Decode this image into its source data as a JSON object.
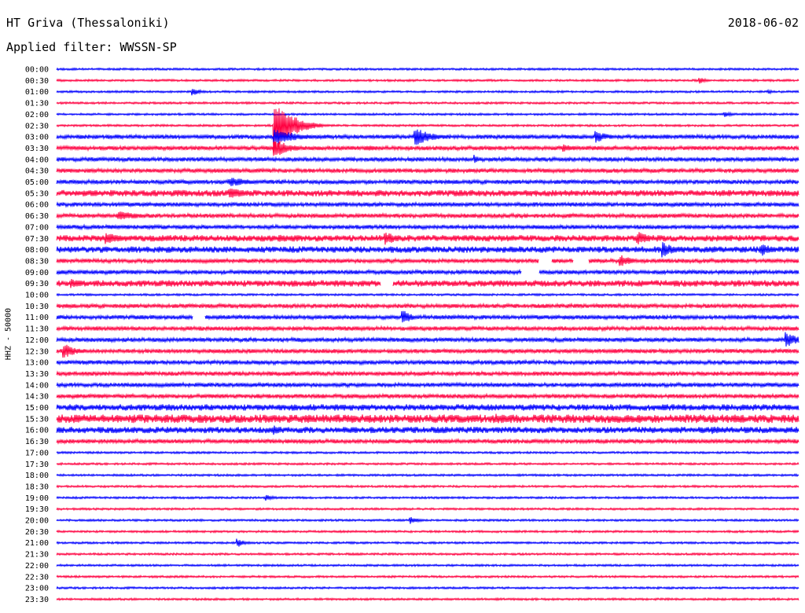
{
  "header": {
    "station": "HT Griva (Thessaloniki)",
    "date": "2018-06-02",
    "filter": "Applied filter: WWSSN-SP"
  },
  "scale_label": "HHZ - 50000",
  "colors": {
    "trace_a": "#0000ff",
    "trace_b": "#ff0040",
    "text": "#000000",
    "background": "#ffffff"
  },
  "chart_data": {
    "type": "line",
    "title": "",
    "xlabel": "",
    "ylabel": "HHZ - 50000",
    "categories": [
      "00:00",
      "00:30",
      "01:00",
      "01:30",
      "02:00",
      "02:30",
      "03:00",
      "03:30",
      "04:00",
      "04:30",
      "05:00",
      "05:30",
      "06:00",
      "06:30",
      "07:00",
      "07:30",
      "08:00",
      "08:30",
      "09:00",
      "09:30",
      "10:00",
      "10:30",
      "11:00",
      "11:30",
      "12:00",
      "12:30",
      "13:00",
      "13:30",
      "14:00",
      "14:30",
      "15:00",
      "15:30",
      "16:00",
      "16:30",
      "17:00",
      "17:30",
      "18:00",
      "18:30",
      "19:00",
      "19:30",
      "20:00",
      "20:30",
      "21:00",
      "21:30",
      "22:00",
      "22:30",
      "23:00",
      "23:30"
    ],
    "row_minutes": 30,
    "noise_level": [
      1,
      1,
      1,
      1,
      1,
      1,
      2,
      2,
      2,
      2,
      2,
      3,
      2,
      2,
      2,
      3,
      3,
      2,
      2,
      3,
      1,
      2,
      2,
      2,
      2,
      2,
      2,
      2,
      2,
      2,
      3,
      4,
      3,
      2,
      1,
      1,
      1,
      1,
      1,
      1,
      1,
      1,
      1,
      1,
      1,
      1,
      1,
      1
    ],
    "events": [
      {
        "row": 1,
        "minute": 26.0,
        "amplitude": 4,
        "duration_min": 0.8
      },
      {
        "row": 2,
        "minute": 5.5,
        "amplitude": 5,
        "duration_min": 1.0
      },
      {
        "row": 2,
        "minute": 28.8,
        "amplitude": 3,
        "duration_min": 0.4
      },
      {
        "row": 4,
        "minute": 27.0,
        "amplitude": 4,
        "duration_min": 1.0
      },
      {
        "row": 5,
        "minute": 8.8,
        "amplitude": 38,
        "duration_min": 2.0
      },
      {
        "row": 6,
        "minute": 8.8,
        "amplitude": 10,
        "duration_min": 3.0
      },
      {
        "row": 6,
        "minute": 14.5,
        "amplitude": 12,
        "duration_min": 2.0
      },
      {
        "row": 6,
        "minute": 21.8,
        "amplitude": 8,
        "duration_min": 1.5
      },
      {
        "row": 7,
        "minute": 8.8,
        "amplitude": 12,
        "duration_min": 2.0
      },
      {
        "row": 7,
        "minute": 12.5,
        "amplitude": 4,
        "duration_min": 2.5
      },
      {
        "row": 7,
        "minute": 20.5,
        "amplitude": 5,
        "duration_min": 2.0
      },
      {
        "row": 8,
        "minute": 16.9,
        "amplitude": 6,
        "duration_min": 0.5
      },
      {
        "row": 10,
        "minute": 7.0,
        "amplitude": 6,
        "duration_min": 3.0
      },
      {
        "row": 11,
        "minute": 7.0,
        "amplitude": 7,
        "duration_min": 2.5
      },
      {
        "row": 13,
        "minute": 2.5,
        "amplitude": 7,
        "duration_min": 2.5
      },
      {
        "row": 15,
        "minute": 2.0,
        "amplitude": 8,
        "duration_min": 2.0
      },
      {
        "row": 15,
        "minute": 9.0,
        "amplitude": 5,
        "duration_min": 3.0
      },
      {
        "row": 15,
        "minute": 13.3,
        "amplitude": 9,
        "duration_min": 1.5
      },
      {
        "row": 15,
        "minute": 23.5,
        "amplitude": 9,
        "duration_min": 1.5
      },
      {
        "row": 16,
        "minute": 24.5,
        "amplitude": 10,
        "duration_min": 1.5
      },
      {
        "row": 16,
        "minute": 28.5,
        "amplitude": 9,
        "duration_min": 1.5
      },
      {
        "row": 17,
        "minute": 22.8,
        "amplitude": 8,
        "duration_min": 1.5
      },
      {
        "row": 19,
        "minute": 0.6,
        "amplitude": 6,
        "duration_min": 2.0
      },
      {
        "row": 22,
        "minute": 14.0,
        "amplitude": 10,
        "duration_min": 1.0
      },
      {
        "row": 24,
        "minute": 29.5,
        "amplitude": 10,
        "duration_min": 1.5
      },
      {
        "row": 25,
        "minute": 0.3,
        "amplitude": 10,
        "duration_min": 1.5
      },
      {
        "row": 31,
        "minute": 17.8,
        "amplitude": 7,
        "duration_min": 2.5
      },
      {
        "row": 32,
        "minute": 8.8,
        "amplitude": 6,
        "duration_min": 1.0
      },
      {
        "row": 32,
        "minute": 26.5,
        "amplitude": 6,
        "duration_min": 2.5
      },
      {
        "row": 38,
        "minute": 8.5,
        "amplitude": 4,
        "duration_min": 1.0
      },
      {
        "row": 40,
        "minute": 14.3,
        "amplitude": 5,
        "duration_min": 1.0
      },
      {
        "row": 42,
        "minute": 7.3,
        "amplitude": 6,
        "duration_min": 1.0
      }
    ],
    "gaps": [
      {
        "row": 17,
        "start_min": 19.5,
        "end_min": 20.0
      },
      {
        "row": 17,
        "start_min": 20.9,
        "end_min": 21.5
      },
      {
        "row": 18,
        "start_min": 18.8,
        "end_min": 19.5
      },
      {
        "row": 19,
        "start_min": 13.1,
        "end_min": 13.6
      },
      {
        "row": 22,
        "start_min": 5.5,
        "end_min": 6.0
      }
    ]
  }
}
